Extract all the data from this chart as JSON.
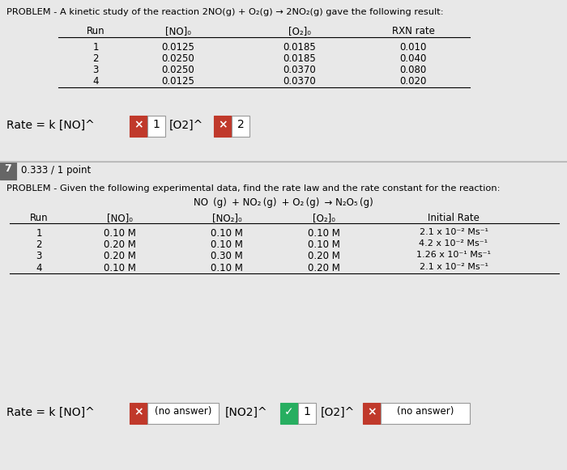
{
  "bg_color": "#e8e8e8",
  "title1": "PROBLEM - A kinetic study of the reaction 2NO(g) + O₂(g) → 2NO₂(g) gave the following result:",
  "table1_headers": [
    "Run",
    "[NO]₀",
    "[O₂]₀",
    "RXN rate"
  ],
  "table1_data": [
    [
      "1",
      "0.0125",
      "0.0185",
      "0.010"
    ],
    [
      "2",
      "0.0250",
      "0.0185",
      "0.040"
    ],
    [
      "3",
      "0.0250",
      "0.0370",
      "0.080"
    ],
    [
      "4",
      "0.0125",
      "0.0370",
      "0.020"
    ]
  ],
  "rate_eq1_prefix": "Rate = k [NO]^",
  "rate_eq1_box1_val": "1",
  "rate_eq1_mid": "[O2]^",
  "rate_eq1_box2_val": "2",
  "section2_score": "0.333 / 1 point",
  "title2": "PROBLEM - Given the following experimental data, find the rate law and the rate constant for the reaction:",
  "reaction2_line1": "NO",
  "reaction2_line2": " (g) + NO₂ (g) + O₂ (g) → N₂O₅ (g)",
  "table2_headers": [
    "Run",
    "[NO]₀",
    "[NO₂]₀",
    "[O₂]₀",
    "Initial Rate"
  ],
  "table2_data": [
    [
      "1",
      "0.10 M",
      "0.10 M",
      "0.10 M",
      "2.1 x 10⁻² Ms⁻¹"
    ],
    [
      "2",
      "0.20 M",
      "0.10 M",
      "0.10 M",
      "4.2 x 10⁻² Ms⁻¹"
    ],
    [
      "3",
      "0.20 M",
      "0.30 M",
      "0.20 M",
      "1.26 x 10⁻¹ Ms⁻¹"
    ],
    [
      "4",
      "0.10 M",
      "0.10 M",
      "0.20 M",
      "2.1 x 10⁻² Ms⁻¹"
    ]
  ],
  "rate_eq2_prefix": "Rate = k [NO]^",
  "rate_eq2_box1_val": "(no answer)",
  "rate_eq2_mid": "[NO2]^",
  "rate_eq2_box2_val": "1",
  "rate_eq2_end": "[O2]^",
  "rate_eq2_box3_val": "(no answer)",
  "red_color": "#c0392b",
  "green_color": "#27ae60",
  "section_num_bg": "#666666",
  "divider_color": "#bbbbbb",
  "white": "#ffffff",
  "border_color": "#999999"
}
